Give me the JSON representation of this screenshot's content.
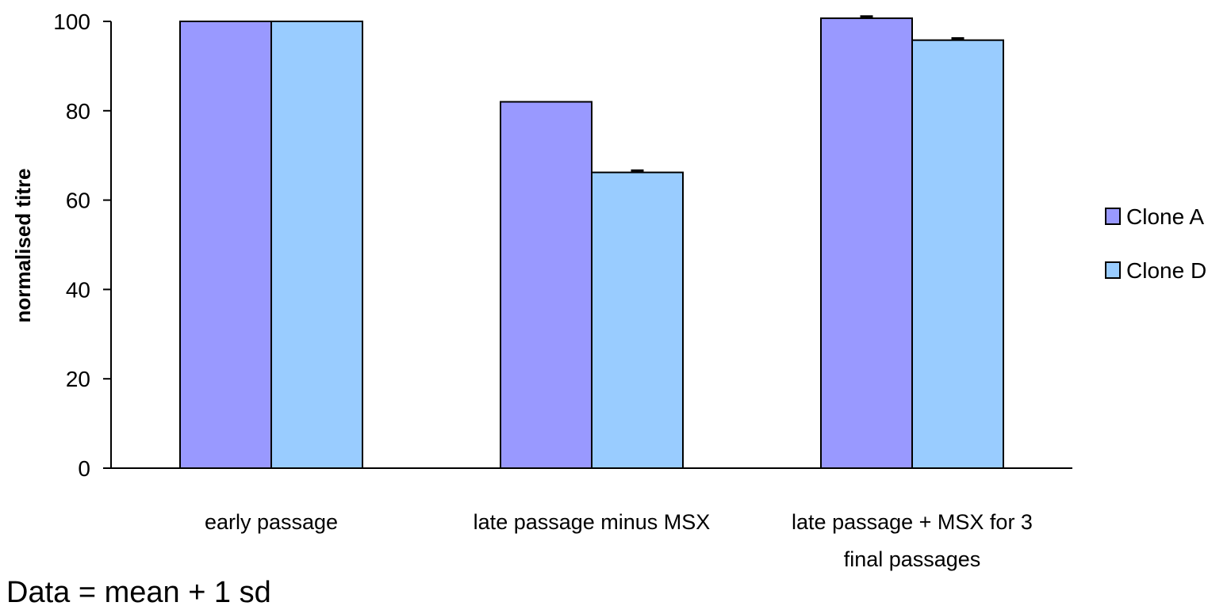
{
  "chart_data": {
    "type": "bar",
    "title": "",
    "xlabel": "",
    "ylabel": "normalised titre",
    "ylim": [
      0,
      100
    ],
    "yticks": [
      0,
      20,
      40,
      60,
      80,
      100
    ],
    "categories": [
      [
        "early passage"
      ],
      [
        "late passage minus MSX"
      ],
      [
        "late passage + MSX for 3",
        "final passages"
      ]
    ],
    "series": [
      {
        "name": "Clone A",
        "color": "#9999ff",
        "values": [
          100,
          82,
          100.7
        ],
        "errors": [
          0,
          0,
          0.4
        ]
      },
      {
        "name": "Clone D",
        "color": "#99ccff",
        "values": [
          100,
          66.2,
          95.8
        ],
        "errors": [
          0,
          0.4,
          0.4
        ]
      }
    ],
    "grid": false,
    "legend_position": "right",
    "footnote": "Data = mean + 1 sd"
  }
}
